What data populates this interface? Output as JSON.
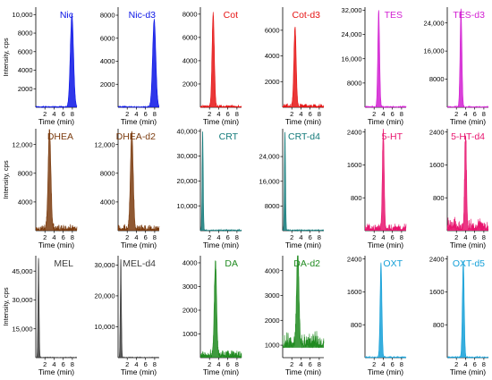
{
  "figure": {
    "row_ylabels": [
      "Intensity, cps",
      "Intensity, cps",
      "Intensity, cps"
    ],
    "xlabel": "Time (min)"
  },
  "chart_data": [
    {
      "type": "line",
      "title": "Nic",
      "color": "#0a14e6",
      "xlabel": "Time (min)",
      "xticks": [
        2,
        4,
        6,
        8
      ],
      "xlim": [
        0,
        9
      ],
      "ylim": [
        0,
        10800
      ],
      "yticks": [
        2000,
        4000,
        6000,
        8000,
        10000
      ],
      "ytick_labels": [
        "2000",
        "4000",
        "6000",
        "8000",
        "10,000"
      ],
      "peak_time": 7.9,
      "peak_height": 10000,
      "peak_width": 0.35,
      "fill": true,
      "noise": 0.01
    },
    {
      "type": "line",
      "title": "Nic-d3",
      "color": "#0a14e6",
      "xlabel": "Time (min)",
      "xticks": [
        2,
        4,
        6,
        8
      ],
      "xlim": [
        0,
        9
      ],
      "ylim": [
        0,
        8700
      ],
      "yticks": [
        2000,
        4000,
        6000,
        8000
      ],
      "ytick_labels": [
        "2000",
        "4000",
        "6000",
        "8000"
      ],
      "peak_time": 7.9,
      "peak_height": 7600,
      "peak_width": 0.35,
      "fill": true,
      "noise": 0.01
    },
    {
      "type": "line",
      "title": "Cot",
      "color": "#e61414",
      "xlabel": "Time (min)",
      "xticks": [
        2,
        4,
        6,
        8
      ],
      "xlim": [
        0,
        9
      ],
      "ylim": [
        0,
        8600
      ],
      "yticks": [
        2000,
        4000,
        6000,
        8000
      ],
      "ytick_labels": [
        "2000",
        "4000",
        "6000",
        "8000"
      ],
      "peak_time": 2.8,
      "peak_height": 8000,
      "peak_width": 0.25,
      "fill": true,
      "noise": 0.02
    },
    {
      "type": "line",
      "title": "Cot-d3",
      "color": "#e61414",
      "xlabel": "Time (min)",
      "xticks": [
        2,
        4,
        6,
        8
      ],
      "xlim": [
        0,
        9
      ],
      "ylim": [
        0,
        7800
      ],
      "yticks": [
        2000,
        4000,
        6000
      ],
      "ytick_labels": [
        "2000",
        "4000",
        "6000"
      ],
      "peak_time": 2.7,
      "peak_height": 6200,
      "peak_width": 0.25,
      "fill": true,
      "noise": 0.03
    },
    {
      "type": "line",
      "title": "TES",
      "color": "#d21ed2",
      "xlabel": "Time (min)",
      "xticks": [
        2,
        4,
        6,
        8
      ],
      "xlim": [
        0,
        9
      ],
      "ylim": [
        0,
        33000
      ],
      "yticks": [
        8000,
        16000,
        24000,
        32000
      ],
      "ytick_labels": [
        "8000",
        "16,000",
        "24,000",
        "32,000"
      ],
      "peak_time": 3.0,
      "peak_height": 32000,
      "peak_width": 0.2,
      "fill": true,
      "noise": 0.01
    },
    {
      "type": "line",
      "title": "TES-d3",
      "color": "#d21ed2",
      "xlabel": "Time (min)",
      "xticks": [
        2,
        4,
        6,
        8
      ],
      "xlim": [
        0,
        9
      ],
      "ylim": [
        0,
        28500
      ],
      "yticks": [
        8000,
        16000,
        24000
      ],
      "ytick_labels": [
        "8000",
        "16,000",
        "24,000"
      ],
      "peak_time": 3.0,
      "peak_height": 28000,
      "peak_width": 0.2,
      "fill": true,
      "noise": 0.01
    },
    {
      "type": "line",
      "title": "DHEA",
      "color": "#7b3b0e",
      "xlabel": "Time (min)",
      "xticks": [
        2,
        4,
        6,
        8
      ],
      "xlim": [
        0,
        9
      ],
      "ylim": [
        0,
        14200
      ],
      "yticks": [
        4000,
        8000,
        12000
      ],
      "ytick_labels": [
        "4000",
        "8000",
        "12,000"
      ],
      "peak_time": 3.0,
      "peak_height": 13800,
      "peak_width": 0.3,
      "fill": true,
      "noise": 0.05
    },
    {
      "type": "line",
      "title": "DHEA-d2",
      "color": "#7b3b0e",
      "xlabel": "Time (min)",
      "xticks": [
        2,
        4,
        6,
        8
      ],
      "xlim": [
        0,
        9
      ],
      "ylim": [
        0,
        14200
      ],
      "yticks": [
        4000,
        8000,
        12000
      ],
      "ytick_labels": [
        "4000",
        "8000",
        "12,000"
      ],
      "peak_time": 3.0,
      "peak_height": 13800,
      "peak_width": 0.3,
      "fill": true,
      "noise": 0.05
    },
    {
      "type": "line",
      "title": "CRT",
      "color": "#137a7a",
      "xlabel": "Time (min)",
      "xticks": [
        2,
        4,
        6,
        8
      ],
      "xlim": [
        0,
        9
      ],
      "ylim": [
        0,
        41000
      ],
      "yticks": [
        10000,
        20000,
        30000,
        40000
      ],
      "ytick_labels": [
        "10,000",
        "20,000",
        "30,000",
        "40,000"
      ],
      "peak_time": 0.5,
      "peak_height": 40000,
      "peak_width": 0.12,
      "fill": true,
      "noise": 0.01
    },
    {
      "type": "line",
      "title": "CRT-d4",
      "color": "#137a7a",
      "xlabel": "Time (min)",
      "xticks": [
        2,
        4,
        6,
        8
      ],
      "xlim": [
        0,
        9
      ],
      "ylim": [
        0,
        33000
      ],
      "yticks": [
        8000,
        16000,
        24000
      ],
      "ytick_labels": [
        "8000",
        "16,000",
        "24,000"
      ],
      "peak_time": 0.5,
      "peak_height": 32000,
      "peak_width": 0.12,
      "fill": true,
      "noise": 0.01
    },
    {
      "type": "line",
      "title": "5-HT",
      "color": "#e8146e",
      "xlabel": "Time (min)",
      "xticks": [
        2,
        4,
        6,
        8
      ],
      "xlim": [
        0,
        9
      ],
      "ylim": [
        0,
        2480
      ],
      "yticks": [
        800,
        1600,
        2400
      ],
      "ytick_labels": [
        "800",
        "1600",
        "2400"
      ],
      "peak_time": 4.0,
      "peak_height": 2400,
      "peak_width": 0.2,
      "fill": true,
      "noise": 0.06
    },
    {
      "type": "line",
      "title": "5-HT-d4",
      "color": "#e8146e",
      "xlabel": "Time (min)",
      "xticks": [
        2,
        4,
        6,
        8
      ],
      "xlim": [
        0,
        9
      ],
      "ylim": [
        0,
        2480
      ],
      "yticks": [
        800,
        1600,
        2400
      ],
      "ytick_labels": [
        "800",
        "1600",
        "2400"
      ],
      "peak_time": 4.0,
      "peak_height": 2300,
      "peak_width": 0.2,
      "fill": true,
      "noise": 0.1
    },
    {
      "type": "line",
      "title": "MEL",
      "color": "#3c3c3c",
      "xlabel": "Time (min)",
      "xticks": [
        2,
        4,
        6,
        8
      ],
      "xlim": [
        0,
        9
      ],
      "ylim": [
        0,
        53000
      ],
      "yticks": [
        15000,
        30000,
        45000
      ],
      "ytick_labels": [
        "15,000",
        "30,000",
        "45,000"
      ],
      "peak_time": 0.6,
      "peak_height": 52000,
      "peak_width": 0.12,
      "fill": true,
      "noise": 0.005
    },
    {
      "type": "line",
      "title": "MEL-d4",
      "color": "#3c3c3c",
      "xlabel": "Time (min)",
      "xticks": [
        2,
        4,
        6,
        8
      ],
      "xlim": [
        0,
        9
      ],
      "ylim": [
        0,
        33000
      ],
      "yticks": [
        10000,
        20000,
        30000
      ],
      "ytick_labels": [
        "10,000",
        "20,000",
        "30,000"
      ],
      "peak_time": 0.6,
      "peak_height": 32000,
      "peak_width": 0.12,
      "fill": true,
      "noise": 0.005
    },
    {
      "type": "line",
      "title": "DA",
      "color": "#1f8a1f",
      "xlabel": "Time (min)",
      "xticks": [
        2,
        4,
        6,
        8
      ],
      "xlim": [
        0,
        9
      ],
      "ylim": [
        0,
        4300
      ],
      "yticks": [
        1000,
        2000,
        3000,
        4000
      ],
      "ytick_labels": [
        "1000",
        "2000",
        "3000",
        "4000"
      ],
      "peak_time": 3.3,
      "peak_height": 4000,
      "peak_width": 0.25,
      "fill": true,
      "noise": 0.06
    },
    {
      "type": "line",
      "title": "DA-d2",
      "color": "#1f8a1f",
      "xlabel": "Time (min)",
      "xticks": [
        2,
        4,
        6,
        8
      ],
      "xlim": [
        0,
        9
      ],
      "ylim": [
        500,
        4600
      ],
      "yticks": [
        1000,
        2000,
        3000,
        4000
      ],
      "ytick_labels": [
        "1000",
        "2000",
        "3000",
        "4000"
      ],
      "peak_time": 3.3,
      "peak_height": 3800,
      "peak_width": 0.25,
      "fill": true,
      "noise": 0.12,
      "baseline": 900
    },
    {
      "type": "line",
      "title": "OXT",
      "color": "#14a0d8",
      "xlabel": "Time (min)",
      "xticks": [
        2,
        4,
        6,
        8
      ],
      "xlim": [
        0,
        9
      ],
      "ylim": [
        0,
        2480
      ],
      "yticks": [
        800,
        1600,
        2400
      ],
      "ytick_labels": [
        "800",
        "1600",
        "2400"
      ],
      "peak_time": 3.5,
      "peak_height": 2300,
      "peak_width": 0.2,
      "fill": true,
      "noise": 0.01
    },
    {
      "type": "line",
      "title": "OXT-d5",
      "color": "#14a0d8",
      "xlabel": "Time (min)",
      "xticks": [
        2,
        4,
        6,
        8
      ],
      "xlim": [
        0,
        9
      ],
      "ylim": [
        0,
        2480
      ],
      "yticks": [
        800,
        1600,
        2400
      ],
      "ytick_labels": [
        "800",
        "1600",
        "2400"
      ],
      "peak_time": 3.5,
      "peak_height": 2350,
      "peak_width": 0.2,
      "fill": true,
      "noise": 0.01
    }
  ]
}
